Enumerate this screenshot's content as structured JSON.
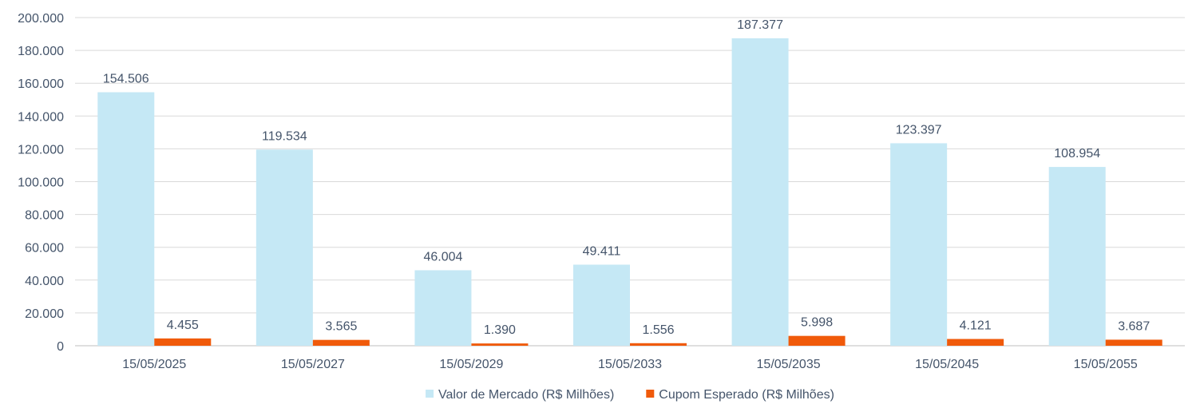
{
  "chart_data": {
    "type": "bar",
    "categories": [
      "15/05/2025",
      "15/05/2027",
      "15/05/2029",
      "15/05/2033",
      "15/05/2035",
      "15/05/2045",
      "15/05/2055"
    ],
    "series": [
      {
        "name": "Valor de Mercado (R$ Milhões)",
        "color": "#c5e8f5",
        "values": [
          154506,
          119534,
          46004,
          49411,
          187377,
          123397,
          108954
        ],
        "labels": [
          "154.506",
          "119.534",
          "46.004",
          "49.411",
          "187.377",
          "123.397",
          "108.954"
        ]
      },
      {
        "name": "Cupom Esperado  (R$ Milhões)",
        "color": "#f05a0a",
        "values": [
          4455,
          3565,
          1390,
          1556,
          5998,
          4121,
          3687
        ],
        "labels": [
          "4.455",
          "3.565",
          "1.390",
          "1.556",
          "5.998",
          "4.121",
          "3.687"
        ]
      }
    ],
    "y_ticks": [
      {
        "value": 0,
        "label": "0"
      },
      {
        "value": 20000,
        "label": "20.000"
      },
      {
        "value": 40000,
        "label": "40.000"
      },
      {
        "value": 60000,
        "label": "60.000"
      },
      {
        "value": 80000,
        "label": "80.000"
      },
      {
        "value": 100000,
        "label": "100.000"
      },
      {
        "value": 120000,
        "label": "120.000"
      },
      {
        "value": 140000,
        "label": "140.000"
      },
      {
        "value": 160000,
        "label": "160.000"
      },
      {
        "value": 180000,
        "label": "180.000"
      },
      {
        "value": 200000,
        "label": "200.000"
      }
    ],
    "ylim": [
      0,
      200000
    ],
    "grid": true,
    "legend_position": "bottom",
    "title": "",
    "xlabel": "",
    "ylabel": ""
  }
}
